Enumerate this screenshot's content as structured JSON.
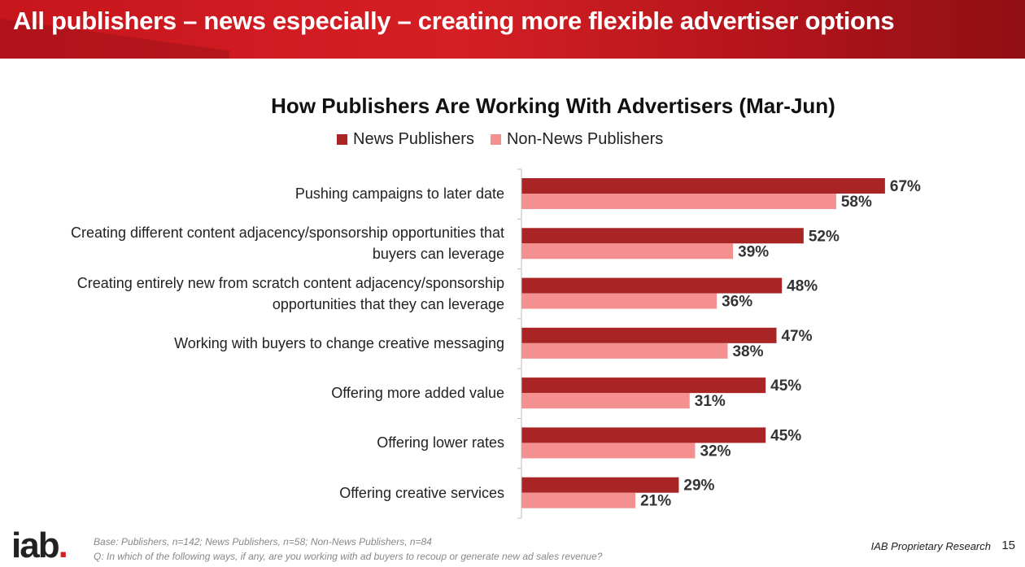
{
  "banner": {
    "title": "All publishers – news especially – creating more flexible advertiser options"
  },
  "chart_data": {
    "type": "bar",
    "orientation": "horizontal",
    "title": "How Publishers Are Working With Advertisers (Mar-Jun)",
    "categories": [
      "Pushing campaigns to later date",
      "Creating different content adjacency/sponsorship opportunities that buyers can leverage",
      "Creating entirely new from scratch content adjacency/sponsorship opportunities that they can leverage",
      "Working with buyers to change creative messaging",
      "Offering more added value",
      "Offering lower rates",
      "Offering creative services"
    ],
    "category_lines": [
      [
        "Pushing campaigns to later date"
      ],
      [
        "Creating different content adjacency/sponsorship opportunities that",
        "buyers can leverage"
      ],
      [
        "Creating entirely new from scratch content adjacency/sponsorship",
        "opportunities that they can leverage"
      ],
      [
        "Working with buyers to change creative messaging"
      ],
      [
        "Offering more added value"
      ],
      [
        "Offering lower rates"
      ],
      [
        "Offering creative services"
      ]
    ],
    "series": [
      {
        "name": "News Publishers",
        "color": "#a92424",
        "values": [
          67,
          52,
          48,
          47,
          45,
          45,
          29
        ]
      },
      {
        "name": "Non-News Publishers",
        "color": "#f4908f",
        "values": [
          58,
          39,
          36,
          38,
          31,
          32,
          21
        ]
      }
    ],
    "value_suffix": "%",
    "xlim": [
      0,
      100
    ],
    "legend": "top",
    "grid": false
  },
  "footer": {
    "logo": "iab",
    "logo_dot": ".",
    "base_note": "Base: Publishers, n=142; News Publishers, n=58; Non-News Publishers, n=84",
    "question_note": "Q: In which of the following ways, if any, are you working with ad buyers to recoup or generate new ad sales revenue?",
    "proprietary": "IAB Proprietary Research",
    "page_number": "15"
  }
}
